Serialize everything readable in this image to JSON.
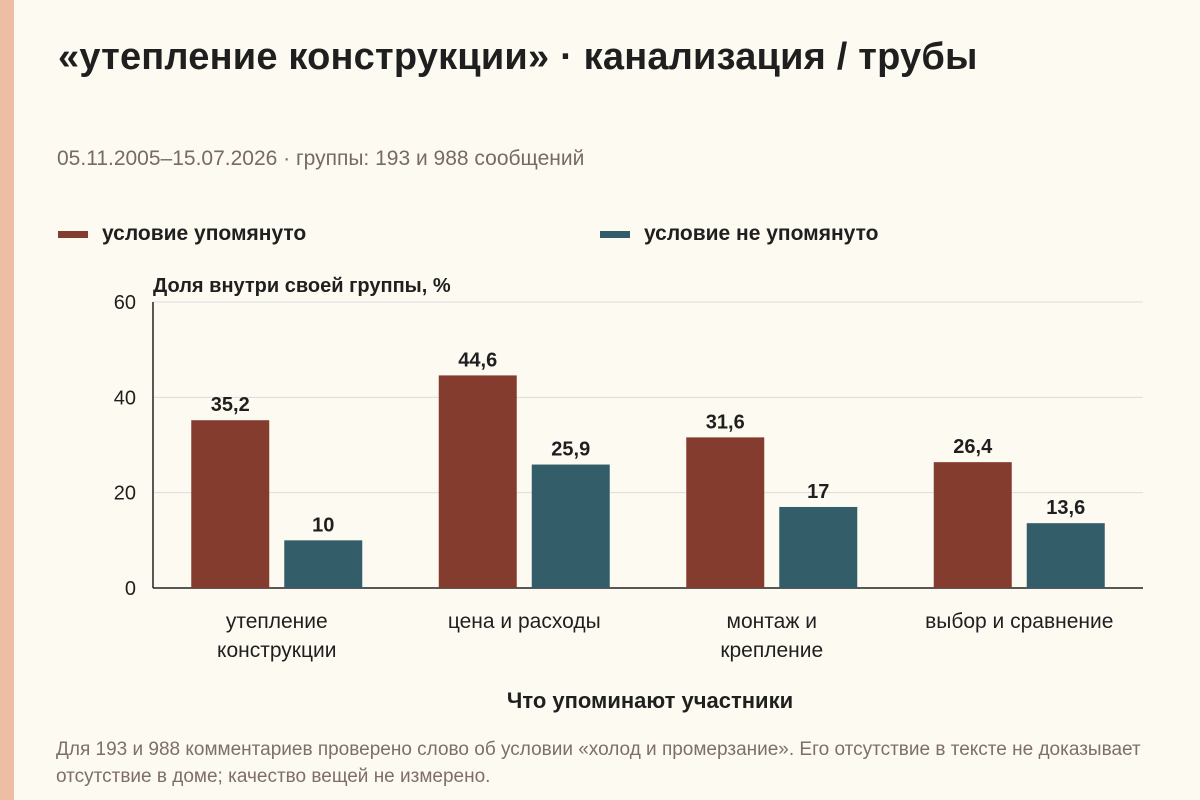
{
  "header": {
    "title": "«утепление конструкции» · канализация / трубы",
    "subtitle": "05.11.2005–15.07.2026 · группы: 193 и 988 сообщений"
  },
  "footnote": "Для 193 и 988 комментариев проверено слово об условии «холод и промерзание». Его отсутствие в тексте не доказывает отсутствие в доме; качество вещей не измерено.",
  "colors": {
    "background": "#fdfaf2",
    "side_band": "#eebea4",
    "mentioned": "#843c2f",
    "not_mentioned": "#345d6a",
    "grid": "#dcdcdc",
    "axis": "#222222"
  },
  "chart_data": {
    "type": "bar",
    "title": "",
    "ylabel": "Доля внутри своей группы, %",
    "xlabel": "Что упоминают участники",
    "ylim": [
      0,
      60
    ],
    "yticks": [
      0,
      20,
      40,
      60
    ],
    "grid": true,
    "legend_position": "top",
    "categories": [
      [
        "утепление",
        "конструкции"
      ],
      [
        "цена и расходы"
      ],
      [
        "монтаж и",
        "крепление"
      ],
      [
        "выбор и сравнение"
      ]
    ],
    "series": [
      {
        "name": "условие упомянуто",
        "color": "#843c2f",
        "values": [
          35.2,
          44.6,
          31.6,
          26.4
        ],
        "labels": [
          "35,2",
          "44,6",
          "31,6",
          "26,4"
        ]
      },
      {
        "name": "условие не упомянуто",
        "color": "#345d6a",
        "values": [
          10,
          25.9,
          17,
          13.6
        ],
        "labels": [
          "10",
          "25,9",
          "17",
          "13,6"
        ]
      }
    ]
  }
}
